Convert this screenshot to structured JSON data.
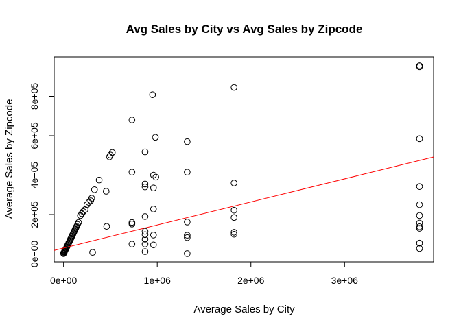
{
  "chart_data": {
    "type": "scatter",
    "title": "Avg Sales by City vs Avg Sales by Zipcode",
    "xlabel": "Average Sales by City",
    "ylabel": "Average Sales by Zipcode",
    "xlim": [
      -100000,
      3950000
    ],
    "ylim": [
      -40000,
      1000000
    ],
    "x_ticks": [
      0,
      1000000,
      2000000,
      3000000
    ],
    "x_tick_labels": [
      "0e+00",
      "1e+06",
      "2e+06",
      "3e+06"
    ],
    "y_ticks": [
      0,
      200000,
      400000,
      600000,
      800000
    ],
    "y_tick_labels": [
      "0e+00",
      "2e+05",
      "4e+05",
      "6e+05",
      "8e+05"
    ],
    "grid": false,
    "marker": "open-circle",
    "point_color": "#000000",
    "fit_line": {
      "intercept": 30000,
      "slope": 0.117,
      "color": "#ff0000"
    },
    "points": [
      [
        0,
        2000
      ],
      [
        0,
        5000
      ],
      [
        2000,
        3000
      ],
      [
        5000,
        8000
      ],
      [
        8000,
        10000
      ],
      [
        10000,
        12000
      ],
      [
        12000,
        15000
      ],
      [
        15000,
        18000
      ],
      [
        18000,
        20000
      ],
      [
        20000,
        22000
      ],
      [
        25000,
        26000
      ],
      [
        30000,
        30000
      ],
      [
        35000,
        36000
      ],
      [
        40000,
        40000
      ],
      [
        45000,
        46000
      ],
      [
        50000,
        50000
      ],
      [
        55000,
        56000
      ],
      [
        60000,
        60000
      ],
      [
        65000,
        66000
      ],
      [
        70000,
        70000
      ],
      [
        75000,
        76000
      ],
      [
        80000,
        80000
      ],
      [
        85000,
        86000
      ],
      [
        90000,
        90000
      ],
      [
        95000,
        96000
      ],
      [
        100000,
        100000
      ],
      [
        105000,
        106000
      ],
      [
        110000,
        110000
      ],
      [
        115000,
        116000
      ],
      [
        120000,
        120000
      ],
      [
        125000,
        126000
      ],
      [
        130000,
        130000
      ],
      [
        135000,
        136000
      ],
      [
        140000,
        140000
      ],
      [
        150000,
        150000
      ],
      [
        160000,
        160000
      ],
      [
        180000,
        195000
      ],
      [
        195000,
        205000
      ],
      [
        210000,
        215000
      ],
      [
        230000,
        225000
      ],
      [
        250000,
        250000
      ],
      [
        270000,
        262000
      ],
      [
        290000,
        270000
      ],
      [
        300000,
        283000
      ],
      [
        310000,
        8000
      ],
      [
        330000,
        326000
      ],
      [
        380000,
        375000
      ],
      [
        455000,
        318000
      ],
      [
        460000,
        140000
      ],
      [
        490000,
        493000
      ],
      [
        500000,
        502000
      ],
      [
        520000,
        515000
      ],
      [
        730000,
        680000
      ],
      [
        730000,
        415000
      ],
      [
        730000,
        160000
      ],
      [
        730000,
        152000
      ],
      [
        730000,
        50000
      ],
      [
        870000,
        518000
      ],
      [
        870000,
        355000
      ],
      [
        870000,
        340000
      ],
      [
        870000,
        190000
      ],
      [
        870000,
        115000
      ],
      [
        870000,
        98000
      ],
      [
        870000,
        75000
      ],
      [
        870000,
        50000
      ],
      [
        870000,
        12000
      ],
      [
        950000,
        808000
      ],
      [
        960000,
        400000
      ],
      [
        960000,
        335000
      ],
      [
        960000,
        228000
      ],
      [
        960000,
        96000
      ],
      [
        960000,
        46000
      ],
      [
        980000,
        592000
      ],
      [
        985000,
        390000
      ],
      [
        1320000,
        570000
      ],
      [
        1320000,
        415000
      ],
      [
        1320000,
        162000
      ],
      [
        1320000,
        95000
      ],
      [
        1320000,
        83000
      ],
      [
        1320000,
        2000
      ],
      [
        1820000,
        845000
      ],
      [
        1820000,
        360000
      ],
      [
        1820000,
        222000
      ],
      [
        1820000,
        185000
      ],
      [
        1820000,
        110000
      ],
      [
        1820000,
        100000
      ],
      [
        3800000,
        955000
      ],
      [
        3800000,
        950000
      ],
      [
        3800000,
        585000
      ],
      [
        3800000,
        342000
      ],
      [
        3800000,
        250000
      ],
      [
        3800000,
        195000
      ],
      [
        3800000,
        157000
      ],
      [
        3800000,
        138000
      ],
      [
        3800000,
        130000
      ],
      [
        3800000,
        55000
      ],
      [
        3800000,
        28000
      ]
    ]
  }
}
